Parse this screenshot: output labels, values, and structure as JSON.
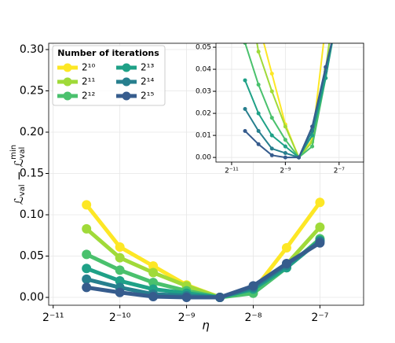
{
  "chart_data": {
    "type": "line",
    "xscale": "log2",
    "xlabel": "η",
    "ylabel": [
      "ℒ",
      "val",
      " − ℒ",
      "val",
      "min"
    ],
    "x": [
      0.000690534,
      0.000976563,
      0.00138107,
      0.00195313,
      0.00276214,
      0.00390625,
      0.00552427,
      0.0078125
    ],
    "series": [
      {
        "name": "2¹⁰",
        "color": "#fde725",
        "values": [
          0.112,
          0.061,
          0.038,
          0.015,
          0.0,
          0.008,
          0.06,
          0.115
        ]
      },
      {
        "name": "2¹¹",
        "color": "#a0da39",
        "values": [
          0.083,
          0.048,
          0.03,
          0.014,
          0.0,
          0.007,
          0.04,
          0.085
        ]
      },
      {
        "name": "2¹²",
        "color": "#4ac16d",
        "values": [
          0.052,
          0.033,
          0.018,
          0.008,
          0.0,
          0.005,
          0.036,
          0.071
        ]
      },
      {
        "name": "2¹³",
        "color": "#1fa187",
        "values": [
          0.035,
          0.02,
          0.01,
          0.005,
          0.0,
          0.01,
          0.036,
          0.069
        ]
      },
      {
        "name": "2¹⁴",
        "color": "#277f8e",
        "values": [
          0.022,
          0.012,
          0.004,
          0.002,
          0.0,
          0.012,
          0.039,
          0.068
        ]
      },
      {
        "name": "2¹⁵",
        "color": "#365c8d",
        "values": [
          0.012,
          0.006,
          0.001,
          0.0,
          0.0,
          0.014,
          0.041,
          0.066
        ]
      }
    ],
    "legend_title": "Number of iterations",
    "legend": "upper left",
    "legend_columns": 2,
    "grid": true,
    "xlim": [
      0.000466,
      0.0123
    ],
    "xticks": [
      {
        "value": 0.00048828125,
        "label": "2⁻¹¹"
      },
      {
        "value": 0.0009765625,
        "label": "2⁻¹⁰"
      },
      {
        "value": 0.001953125,
        "label": "2⁻⁹"
      },
      {
        "value": 0.00390625,
        "label": "2⁻⁸"
      },
      {
        "value": 0.0078125,
        "label": "2⁻⁷"
      }
    ],
    "ylim": [
      -0.0095,
      0.3076
    ],
    "yticks": [
      {
        "value": 0,
        "label": "0.00"
      },
      {
        "value": 0.05,
        "label": "0.05"
      },
      {
        "value": 0.1,
        "label": "0.10"
      },
      {
        "value": 0.15,
        "label": "0.15"
      },
      {
        "value": 0.2,
        "label": "0.20"
      },
      {
        "value": 0.25,
        "label": "0.25"
      },
      {
        "value": 0.3,
        "label": "0.30"
      }
    ],
    "inset": {
      "xlim": [
        0.000326,
        0.0147
      ],
      "xticks": [
        {
          "value": 0.00048828125,
          "label": "2⁻¹¹"
        },
        {
          "value": 0.001953125,
          "label": "2⁻⁹"
        },
        {
          "value": 0.0078125,
          "label": "2⁻⁷"
        }
      ],
      "ylim": [
        -0.0021,
        0.0518
      ],
      "yticks": [
        {
          "value": 0,
          "label": "0.00"
        },
        {
          "value": 0.01,
          "label": "0.01"
        },
        {
          "value": 0.02,
          "label": "0.02"
        },
        {
          "value": 0.03,
          "label": "0.03"
        },
        {
          "value": 0.04,
          "label": "0.04"
        },
        {
          "value": 0.05,
          "label": "0.05"
        }
      ]
    }
  }
}
